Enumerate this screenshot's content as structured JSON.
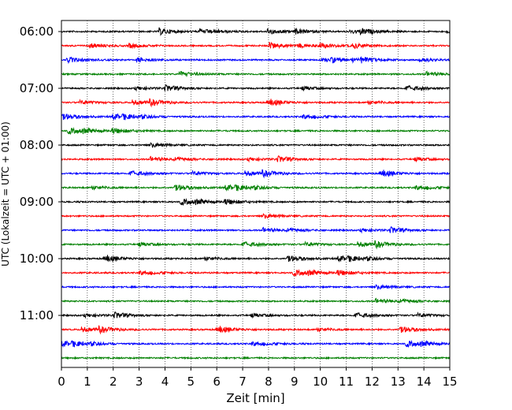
{
  "chart_data": {
    "type": "line",
    "title": "",
    "xlabel": "Zeit  [min]",
    "ylabel": "UTC (Lokalzeit = UTC + 01:00)",
    "xlim": [
      0,
      15
    ],
    "x_ticks": [
      0,
      1,
      2,
      3,
      4,
      5,
      6,
      7,
      8,
      9,
      10,
      11,
      12,
      13,
      14,
      15
    ],
    "y_ticks": [
      "06:00",
      "07:00",
      "08:00",
      "09:00",
      "10:00",
      "11:00"
    ],
    "grid": "vertical dotted",
    "trace_interval_minutes": 15,
    "start_time": "06:00",
    "trace_count": 24,
    "trace_color_cycle": [
      "#000000",
      "#ff0000",
      "#0000ff",
      "#008000"
    ],
    "series_note_hidden": ""
  }
}
